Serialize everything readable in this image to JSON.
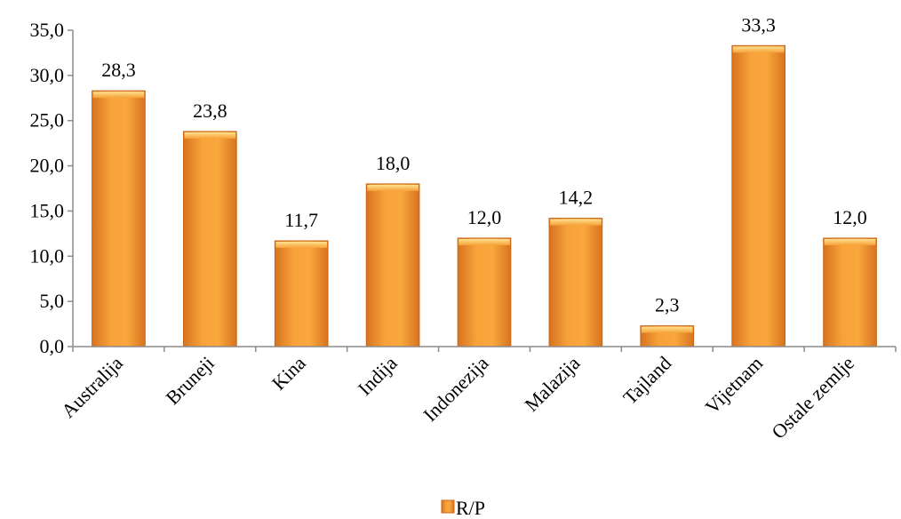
{
  "chart_data": {
    "type": "bar",
    "categories": [
      "Australija",
      "Bruneji",
      "Kina",
      "Indija",
      "Indonezija",
      "Malazija",
      "Tajland",
      "Vijetnam",
      "Ostale zemlje"
    ],
    "series": [
      {
        "name": "R/P",
        "values": [
          28.3,
          23.8,
          11.7,
          18.0,
          12.0,
          14.2,
          2.3,
          33.3,
          12.0
        ]
      }
    ],
    "data_labels": [
      "28,3",
      "23,8",
      "11,7",
      "18,0",
      "12,0",
      "14,2",
      "2,3",
      "33,3",
      "12,0"
    ],
    "ylim": [
      0,
      35
    ],
    "y_ticks": [
      0,
      5,
      10,
      15,
      20,
      25,
      30,
      35
    ],
    "y_tick_labels": [
      "0,0",
      "5,0",
      "10,0",
      "15,0",
      "20,0",
      "25,0",
      "30,0",
      "35,0"
    ],
    "title": "",
    "xlabel": "",
    "ylabel": "",
    "grid": false,
    "legend": {
      "position": "bottom",
      "entries": [
        "R/P"
      ]
    },
    "colors": {
      "bar_main": "#f59a2f",
      "bar_dark": "#c8651a",
      "bar_light": "#ffd17a",
      "axis": "#8c8c8c"
    }
  }
}
